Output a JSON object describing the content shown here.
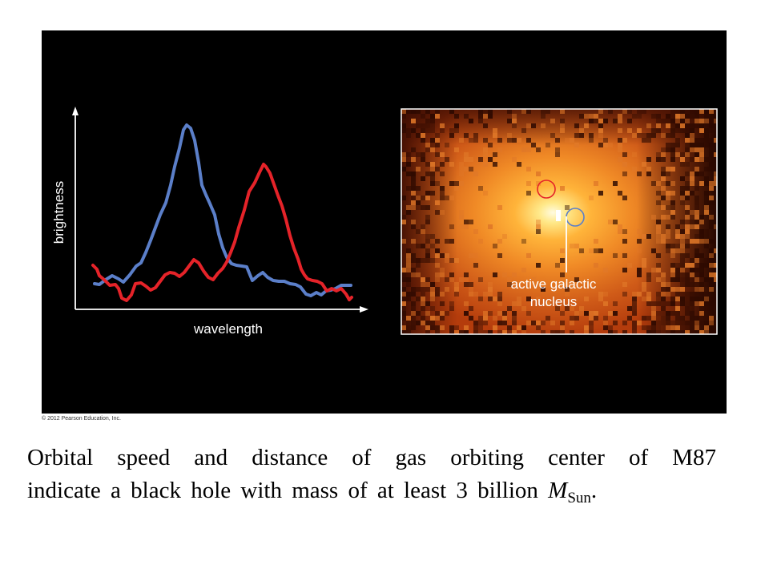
{
  "spectrum_plot": {
    "x_axis_label": "wavelength",
    "y_axis_label": "brightness",
    "series": [
      {
        "color": "#e52329",
        "peak_shift": "redshifted"
      },
      {
        "color": "#5b7fc9",
        "peak_shift": "blueshifted"
      }
    ]
  },
  "galaxy_image": {
    "annotation_label_line1": "active galactic",
    "annotation_label_line2": "nucleus",
    "marker_colors": [
      "#e52329",
      "#5b7fc9"
    ],
    "background_color": "#c2460f",
    "glow_color": "#ffe07a"
  },
  "copyright": "© 2012 Pearson Education, Inc.",
  "caption": {
    "line1": "Orbital speed and distance of gas orbiting center of M87",
    "line2_prefix": "indicate a black hole with mass of at least 3 billion ",
    "mass_symbol": "M",
    "mass_subscript": "Sun",
    "line2_suffix": "."
  }
}
